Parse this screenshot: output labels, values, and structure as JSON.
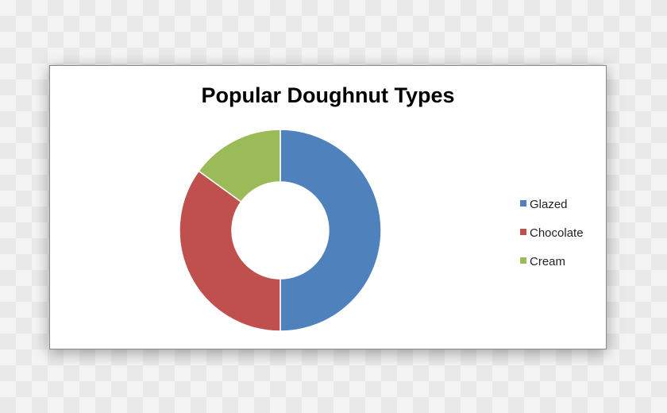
{
  "chart_data": {
    "type": "pie",
    "subtype": "doughnut",
    "title": "Popular Doughnut Types",
    "categories": [
      "Glazed",
      "Chocolate",
      "Cream"
    ],
    "values": [
      50,
      35,
      15
    ],
    "unit": "percent",
    "colors": [
      "#4f81bd",
      "#c0504d",
      "#9bbb59"
    ],
    "legend_position": "right"
  }
}
